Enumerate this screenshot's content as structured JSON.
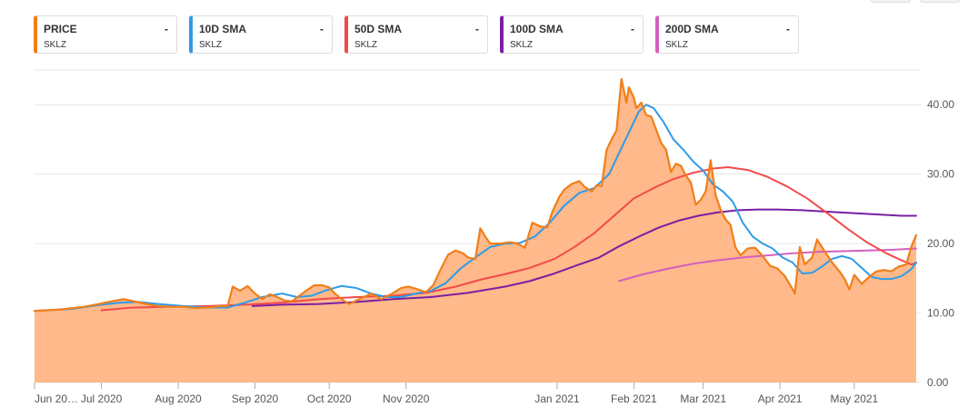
{
  "legend": [
    {
      "name": "PRICE",
      "value": "-",
      "symbol": "SKLZ",
      "color": "#f07f1a"
    },
    {
      "name": "10D SMA",
      "value": "-",
      "symbol": "SKLZ",
      "color": "#2f9be8"
    },
    {
      "name": "50D SMA",
      "value": "-",
      "symbol": "SKLZ",
      "color": "#f24a4a"
    },
    {
      "name": "100D SMA",
      "value": "-",
      "symbol": "SKLZ",
      "color": "#7a1fa2"
    },
    {
      "name": "200D SMA",
      "value": "-",
      "symbol": "SKLZ",
      "color": "#d45fbf"
    }
  ],
  "chart_data": {
    "type": "area",
    "title": "",
    "ylim": [
      0,
      45
    ],
    "y_ticks": [
      0,
      10,
      20,
      30,
      40
    ],
    "y_tick_labels": [
      "0.00",
      "10.00",
      "20.00",
      "30.00",
      "40.00"
    ],
    "x_range": [
      0,
      340
    ],
    "x_ticks": [
      {
        "x": 0,
        "label": "Jun 20…"
      },
      {
        "x": 27,
        "label": "Jul 2020"
      },
      {
        "x": 58,
        "label": "Aug 2020"
      },
      {
        "x": 89,
        "label": "Sep 2020"
      },
      {
        "x": 119,
        "label": "Oct 2020"
      },
      {
        "x": 150,
        "label": "Nov 2020"
      },
      {
        "x": 211,
        "label": "Jan 2021"
      },
      {
        "x": 242,
        "label": "Feb 2021"
      },
      {
        "x": 270,
        "label": "Mar 2021"
      },
      {
        "x": 301,
        "label": "Apr 2021"
      },
      {
        "x": 331,
        "label": "May 2021"
      }
    ],
    "series": [
      {
        "name": "PRICE",
        "color": "#f07f1a",
        "fill": "#ffb98a",
        "points": [
          [
            0,
            10.3
          ],
          [
            10,
            10.5
          ],
          [
            20,
            10.9
          ],
          [
            26,
            11.3
          ],
          [
            30,
            11.6
          ],
          [
            36,
            12.0
          ],
          [
            40,
            11.7
          ],
          [
            45,
            11.3
          ],
          [
            50,
            11.0
          ],
          [
            55,
            10.9
          ],
          [
            60,
            10.9
          ],
          [
            65,
            10.7
          ],
          [
            70,
            10.8
          ],
          [
            75,
            11.0
          ],
          [
            78,
            11.0
          ],
          [
            80,
            13.8
          ],
          [
            83,
            13.2
          ],
          [
            86,
            13.9
          ],
          [
            89,
            12.8
          ],
          [
            92,
            12.0
          ],
          [
            95,
            12.7
          ],
          [
            98,
            12.3
          ],
          [
            101,
            11.8
          ],
          [
            104,
            11.7
          ],
          [
            107,
            12.5
          ],
          [
            110,
            13.3
          ],
          [
            113,
            14.0
          ],
          [
            116,
            14.0
          ],
          [
            119,
            13.7
          ],
          [
            121,
            12.9
          ],
          [
            124,
            12.0
          ],
          [
            127,
            11.3
          ],
          [
            130,
            11.8
          ],
          [
            133,
            12.3
          ],
          [
            136,
            12.8
          ],
          [
            140,
            12.0
          ],
          [
            144,
            12.7
          ],
          [
            148,
            13.6
          ],
          [
            151,
            13.8
          ],
          [
            154,
            13.5
          ],
          [
            158,
            13.0
          ],
          [
            161,
            14.0
          ],
          [
            164,
            16.3
          ],
          [
            167,
            18.4
          ],
          [
            170,
            19.0
          ],
          [
            173,
            18.6
          ],
          [
            175,
            18.0
          ],
          [
            178,
            17.8
          ],
          [
            180,
            22.2
          ],
          [
            182,
            21.0
          ],
          [
            184,
            20.0
          ],
          [
            188,
            20.0
          ],
          [
            192,
            20.2
          ],
          [
            195,
            20.0
          ],
          [
            198,
            19.4
          ],
          [
            201,
            23.0
          ],
          [
            204,
            22.5
          ],
          [
            207,
            22.3
          ],
          [
            209,
            24.5
          ],
          [
            212,
            26.8
          ],
          [
            214,
            27.8
          ],
          [
            217,
            28.6
          ],
          [
            220,
            29.0
          ],
          [
            222,
            28.2
          ],
          [
            225,
            27.5
          ],
          [
            227,
            28.4
          ],
          [
            229,
            28.3
          ],
          [
            231,
            33.5
          ],
          [
            233,
            35.0
          ],
          [
            235,
            36.3
          ],
          [
            237,
            43.7
          ],
          [
            239,
            40.3
          ],
          [
            240,
            42.5
          ],
          [
            242,
            41.0
          ],
          [
            243,
            39.5
          ],
          [
            245,
            40.3
          ],
          [
            247,
            38.5
          ],
          [
            249,
            38.3
          ],
          [
            251,
            36.4
          ],
          [
            253,
            34.5
          ],
          [
            255,
            33.5
          ],
          [
            257,
            30.3
          ],
          [
            259,
            31.5
          ],
          [
            261,
            31.2
          ],
          [
            263,
            29.8
          ],
          [
            265,
            28.8
          ],
          [
            267,
            25.6
          ],
          [
            269,
            26.3
          ],
          [
            271,
            27.5
          ],
          [
            273,
            32.0
          ],
          [
            275,
            27.0
          ],
          [
            277,
            24.9
          ],
          [
            279,
            23.5
          ],
          [
            281,
            22.7
          ],
          [
            283,
            19.5
          ],
          [
            285,
            18.3
          ],
          [
            288,
            19.3
          ],
          [
            291,
            19.4
          ],
          [
            294,
            18.2
          ],
          [
            297,
            16.8
          ],
          [
            300,
            16.4
          ],
          [
            303,
            15.3
          ],
          [
            306,
            13.5
          ],
          [
            307,
            12.8
          ],
          [
            309,
            19.5
          ],
          [
            311,
            17.0
          ],
          [
            314,
            18.0
          ],
          [
            316,
            20.6
          ],
          [
            319,
            18.9
          ],
          [
            322,
            17.3
          ],
          [
            325,
            16.0
          ],
          [
            327,
            15.0
          ],
          [
            329,
            13.4
          ],
          [
            331,
            15.5
          ],
          [
            334,
            14.2
          ],
          [
            337,
            15.2
          ],
          [
            340,
            16.0
          ],
          [
            343,
            16.2
          ],
          [
            346,
            16.0
          ],
          [
            349,
            16.7
          ],
          [
            352,
            17.0
          ],
          [
            354,
            19.5
          ],
          [
            356,
            21.2
          ]
        ]
      },
      {
        "name": "10D SMA",
        "color": "#2f9be8",
        "points": [
          [
            0,
            10.3
          ],
          [
            15,
            10.6
          ],
          [
            27,
            11.2
          ],
          [
            35,
            11.5
          ],
          [
            42,
            11.6
          ],
          [
            50,
            11.3
          ],
          [
            60,
            11.0
          ],
          [
            70,
            10.8
          ],
          [
            78,
            10.8
          ],
          [
            85,
            11.5
          ],
          [
            92,
            12.3
          ],
          [
            100,
            12.8
          ],
          [
            106,
            12.3
          ],
          [
            112,
            12.5
          ],
          [
            118,
            13.3
          ],
          [
            124,
            13.9
          ],
          [
            130,
            13.6
          ],
          [
            136,
            12.8
          ],
          [
            142,
            12.3
          ],
          [
            148,
            12.3
          ],
          [
            154,
            12.8
          ],
          [
            160,
            13.2
          ],
          [
            166,
            14.3
          ],
          [
            172,
            16.4
          ],
          [
            178,
            18.0
          ],
          [
            184,
            19.5
          ],
          [
            190,
            20.0
          ],
          [
            196,
            20.1
          ],
          [
            202,
            21.0
          ],
          [
            208,
            23.0
          ],
          [
            214,
            25.5
          ],
          [
            220,
            27.3
          ],
          [
            226,
            28.0
          ],
          [
            232,
            30.0
          ],
          [
            236,
            33.0
          ],
          [
            240,
            36.0
          ],
          [
            244,
            39.0
          ],
          [
            247,
            40.0
          ],
          [
            250,
            39.5
          ],
          [
            254,
            37.5
          ],
          [
            258,
            35.0
          ],
          [
            262,
            33.5
          ],
          [
            266,
            31.8
          ],
          [
            270,
            30.5
          ],
          [
            274,
            28.5
          ],
          [
            278,
            27.5
          ],
          [
            282,
            26.0
          ],
          [
            286,
            23.0
          ],
          [
            290,
            21.0
          ],
          [
            294,
            20.0
          ],
          [
            298,
            19.3
          ],
          [
            302,
            18.0
          ],
          [
            306,
            17.3
          ],
          [
            310,
            15.7
          ],
          [
            314,
            15.8
          ],
          [
            318,
            16.7
          ],
          [
            322,
            17.8
          ],
          [
            326,
            18.2
          ],
          [
            330,
            17.8
          ],
          [
            334,
            16.5
          ],
          [
            338,
            15.2
          ],
          [
            342,
            14.9
          ],
          [
            346,
            14.9
          ],
          [
            350,
            15.3
          ],
          [
            354,
            16.3
          ],
          [
            356,
            17.3
          ]
        ]
      },
      {
        "name": "50D SMA",
        "color": "#f24a4a",
        "points": [
          [
            27,
            10.4
          ],
          [
            40,
            10.8
          ],
          [
            55,
            10.9
          ],
          [
            70,
            11.0
          ],
          [
            85,
            11.2
          ],
          [
            100,
            11.5
          ],
          [
            115,
            12.0
          ],
          [
            130,
            12.3
          ],
          [
            145,
            12.5
          ],
          [
            158,
            12.9
          ],
          [
            170,
            13.8
          ],
          [
            180,
            14.8
          ],
          [
            190,
            15.6
          ],
          [
            200,
            16.5
          ],
          [
            210,
            17.8
          ],
          [
            218,
            19.5
          ],
          [
            226,
            21.5
          ],
          [
            234,
            24.0
          ],
          [
            242,
            26.5
          ],
          [
            250,
            28.0
          ],
          [
            258,
            29.3
          ],
          [
            266,
            30.2
          ],
          [
            274,
            30.8
          ],
          [
            280,
            31.0
          ],
          [
            288,
            30.6
          ],
          [
            296,
            29.6
          ],
          [
            304,
            28.2
          ],
          [
            312,
            26.5
          ],
          [
            320,
            24.4
          ],
          [
            328,
            22.2
          ],
          [
            336,
            20.2
          ],
          [
            344,
            18.6
          ],
          [
            350,
            17.6
          ],
          [
            354,
            17.0
          ],
          [
            356,
            17.2
          ]
        ]
      },
      {
        "name": "100D SMA",
        "color": "#7a1fa2",
        "points": [
          [
            88,
            11.0
          ],
          [
            100,
            11.2
          ],
          [
            115,
            11.3
          ],
          [
            130,
            11.6
          ],
          [
            145,
            12.0
          ],
          [
            160,
            12.3
          ],
          [
            175,
            12.9
          ],
          [
            190,
            13.8
          ],
          [
            200,
            14.6
          ],
          [
            210,
            15.7
          ],
          [
            220,
            17.0
          ],
          [
            228,
            18.0
          ],
          [
            236,
            19.6
          ],
          [
            244,
            21.0
          ],
          [
            252,
            22.3
          ],
          [
            260,
            23.3
          ],
          [
            268,
            24.0
          ],
          [
            276,
            24.5
          ],
          [
            284,
            24.8
          ],
          [
            292,
            24.9
          ],
          [
            300,
            24.9
          ],
          [
            310,
            24.8
          ],
          [
            320,
            24.6
          ],
          [
            330,
            24.4
          ],
          [
            340,
            24.2
          ],
          [
            350,
            24.0
          ],
          [
            356,
            24.0
          ]
        ]
      },
      {
        "name": "200D SMA",
        "color": "#d45fbf",
        "points": [
          [
            236,
            14.6
          ],
          [
            246,
            15.6
          ],
          [
            256,
            16.4
          ],
          [
            266,
            17.1
          ],
          [
            276,
            17.6
          ],
          [
            286,
            18.0
          ],
          [
            296,
            18.3
          ],
          [
            306,
            18.6
          ],
          [
            316,
            18.8
          ],
          [
            326,
            18.9
          ],
          [
            336,
            19.0
          ],
          [
            346,
            19.1
          ],
          [
            356,
            19.3
          ]
        ]
      }
    ]
  }
}
